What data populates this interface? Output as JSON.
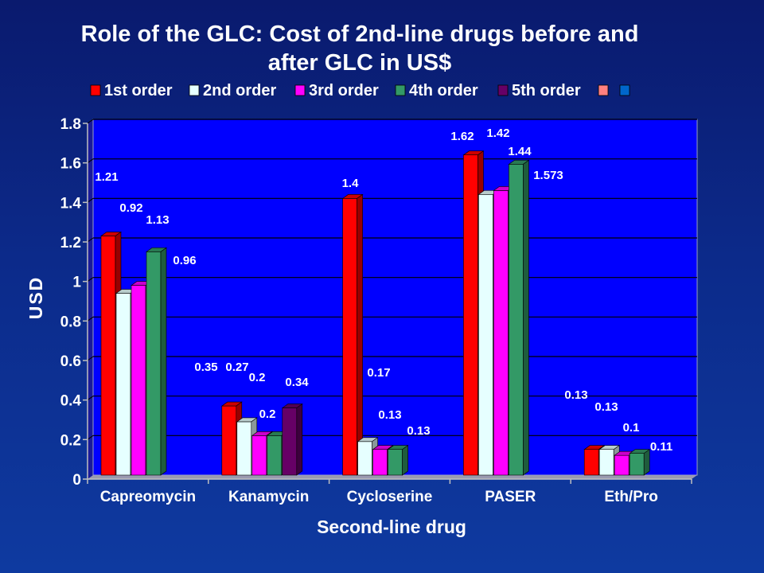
{
  "chart_data": {
    "type": "bar",
    "title_line1": "Role of the GLC:  Cost of 2nd-line drugs before and",
    "title_line2": "after GLC in US$",
    "xlabel": "Second-line drug",
    "ylabel": "USD",
    "ylim": [
      0,
      1.8
    ],
    "yticks": [
      "0",
      "0.2",
      "0.4",
      "0.6",
      "0.8",
      "1",
      "1.2",
      "1.4",
      "1.6",
      "1.8"
    ],
    "grid": true,
    "legend_position": "top",
    "categories": [
      "Capreomycin",
      "Kanamycin",
      "Cycloserine",
      "PASER",
      "Eth/Pro"
    ],
    "series": [
      {
        "name": "1st order",
        "color": "#ff0000",
        "values": [
          1.21,
          0.35,
          1.4,
          1.62,
          0.13
        ]
      },
      {
        "name": "2nd order",
        "color": "#e6ffff",
        "values": [
          0.92,
          0.27,
          0.17,
          1.42,
          0.13
        ]
      },
      {
        "name": "3rd order",
        "color": "#ff00ff",
        "values": [
          0.96,
          0.2,
          0.13,
          1.44,
          0.1
        ]
      },
      {
        "name": "4th order",
        "color": "#339966",
        "values": [
          1.13,
          0.2,
          0.13,
          1.573,
          0.11
        ]
      },
      {
        "name": "5th order",
        "color": "#660066",
        "values": [
          null,
          0.34,
          null,
          null,
          null
        ]
      },
      {
        "name": "",
        "color": "#ff8080",
        "values": [
          null,
          null,
          null,
          null,
          null
        ]
      },
      {
        "name": "",
        "color": "#0066cc",
        "values": [
          null,
          null,
          null,
          null,
          null
        ]
      }
    ],
    "data_labels": [
      {
        "text": "1.21",
        "category": "Capreomycin"
      },
      {
        "text": "0.92",
        "category": "Capreomycin"
      },
      {
        "text": "1.13",
        "category": "Capreomycin"
      },
      {
        "text": "0.96",
        "category": "Capreomycin"
      },
      {
        "text": "0.35",
        "category": "Kanamycin"
      },
      {
        "text": "0.27",
        "category": "Kanamycin"
      },
      {
        "text": "0.2",
        "category": "Kanamycin"
      },
      {
        "text": "0.34",
        "category": "Kanamycin"
      },
      {
        "text": "0.2",
        "category": "Kanamycin"
      },
      {
        "text": "1.4",
        "category": "Cycloserine"
      },
      {
        "text": "0.17",
        "category": "Cycloserine"
      },
      {
        "text": "0.13",
        "category": "Cycloserine"
      },
      {
        "text": "0.13",
        "category": "Cycloserine"
      },
      {
        "text": "1.62",
        "category": "PASER"
      },
      {
        "text": "1.42",
        "category": "PASER"
      },
      {
        "text": "1.44",
        "category": "PASER"
      },
      {
        "text": "1.573",
        "category": "PASER"
      },
      {
        "text": "0.13",
        "category": "Eth/Pro"
      },
      {
        "text": "0.13",
        "category": "Eth/Pro"
      },
      {
        "text": "0.1",
        "category": "Eth/Pro"
      },
      {
        "text": "0.11",
        "category": "Eth/Pro"
      }
    ]
  }
}
